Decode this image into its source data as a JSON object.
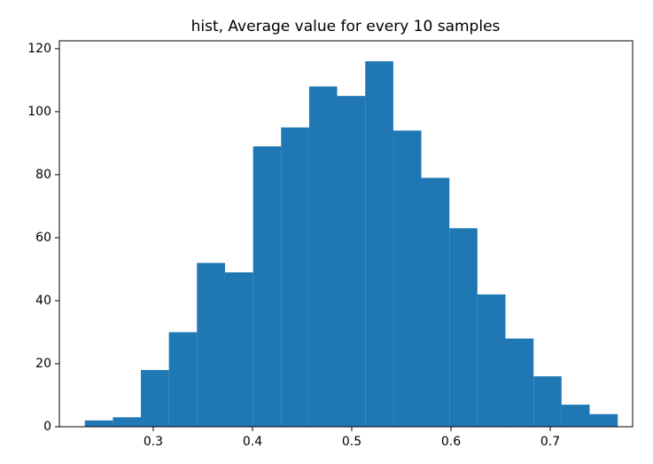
{
  "chart_data": {
    "type": "histogram",
    "title": "hist, Average value for every 10 samples",
    "bins": [
      0.231,
      0.2593,
      0.2875,
      0.3158,
      0.344,
      0.3723,
      0.4006,
      0.4288,
      0.4571,
      0.4853,
      0.5136,
      0.5419,
      0.5701,
      0.5984,
      0.6266,
      0.6549,
      0.6832,
      0.7114,
      0.7397,
      0.768
    ],
    "counts": [
      2,
      3,
      18,
      30,
      52,
      49,
      89,
      95,
      108,
      105,
      116,
      94,
      79,
      63,
      42,
      28,
      16,
      7,
      4
    ],
    "color": "#1f77b4",
    "xlim": [
      0.2054,
      0.783
    ],
    "xticks": [
      0.3,
      0.4,
      0.5,
      0.6,
      0.7
    ],
    "ylim": [
      0,
      122.5
    ],
    "yticks": [
      0,
      20,
      40,
      60,
      80,
      100,
      120
    ],
    "grid": false
  }
}
